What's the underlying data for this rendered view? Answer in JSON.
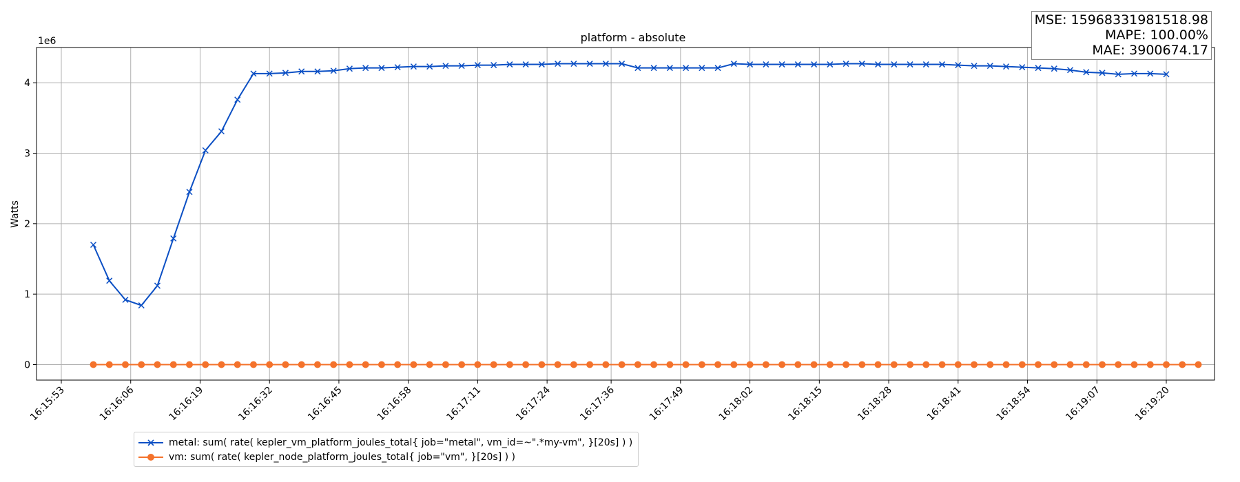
{
  "chart_data": {
    "type": "line",
    "title": "platform - absolute",
    "ylabel": "Watts",
    "y_offset_label": "1e6",
    "ylim": [
      -0.22,
      4.5
    ],
    "yticks": [
      0,
      1,
      2,
      3,
      4
    ],
    "x_tick_labels": [
      "16:15:53",
      "16:16:06",
      "16:16:19",
      "16:16:32",
      "16:16:45",
      "16:16:58",
      "16:17:11",
      "16:17:24",
      "16:17:36",
      "16:17:49",
      "16:18:02",
      "16:18:15",
      "16:18:28",
      "16:18:41",
      "16:18:54",
      "16:19:07",
      "16:19:20"
    ],
    "x_first_sample": "16:15:59",
    "x_sample_interval_seconds": 3,
    "grid": true,
    "legend_position": "lower-left below axes",
    "series": [
      {
        "name": "metal: sum( rate( kepler_vm_platform_joules_total{ job=\"metal\", vm_id=~\".*my-vm\", }[20s] ) )",
        "color": "#0b4fc4",
        "marker": "x",
        "values": [
          1.7,
          1.19,
          0.92,
          0.84,
          1.12,
          1.79,
          2.45,
          3.04,
          3.31,
          3.76,
          4.13,
          4.13,
          4.14,
          4.16,
          4.16,
          4.17,
          4.2,
          4.21,
          4.21,
          4.22,
          4.23,
          4.23,
          4.24,
          4.24,
          4.25,
          4.25,
          4.26,
          4.26,
          4.26,
          4.27,
          4.27,
          4.27,
          4.27,
          4.27,
          4.21,
          4.21,
          4.21,
          4.21,
          4.21,
          4.21,
          4.27,
          4.26,
          4.26,
          4.26,
          4.26,
          4.26,
          4.26,
          4.27,
          4.27,
          4.26,
          4.26,
          4.26,
          4.26,
          4.26,
          4.25,
          4.24,
          4.24,
          4.23,
          4.22,
          4.21,
          4.2,
          4.18,
          4.15,
          4.14,
          4.12,
          4.13,
          4.13,
          4.12
        ]
      },
      {
        "name": "vm: sum( rate( kepler_node_platform_joules_total{ job=\"vm\", }[20s] ) )",
        "color": "#f4722b",
        "marker": "o",
        "values": [
          0,
          0,
          0,
          0,
          0,
          0,
          0,
          0,
          0,
          0,
          0,
          0,
          0,
          0,
          0,
          0,
          0,
          0,
          0,
          0,
          0,
          0,
          0,
          0,
          0,
          0,
          0,
          0,
          0,
          0,
          0,
          0,
          0,
          0,
          0,
          0,
          0,
          0,
          0,
          0,
          0,
          0,
          0,
          0,
          0,
          0,
          0,
          0,
          0,
          0,
          0,
          0,
          0,
          0,
          0,
          0,
          0,
          0,
          0,
          0,
          0,
          0,
          0,
          0,
          0,
          0,
          0,
          0,
          0,
          0
        ]
      }
    ]
  },
  "stats": {
    "mse": "MSE: 15968331981518.98",
    "mape": "MAPE: 100.00%",
    "mae": "MAE: 3900674.17"
  }
}
